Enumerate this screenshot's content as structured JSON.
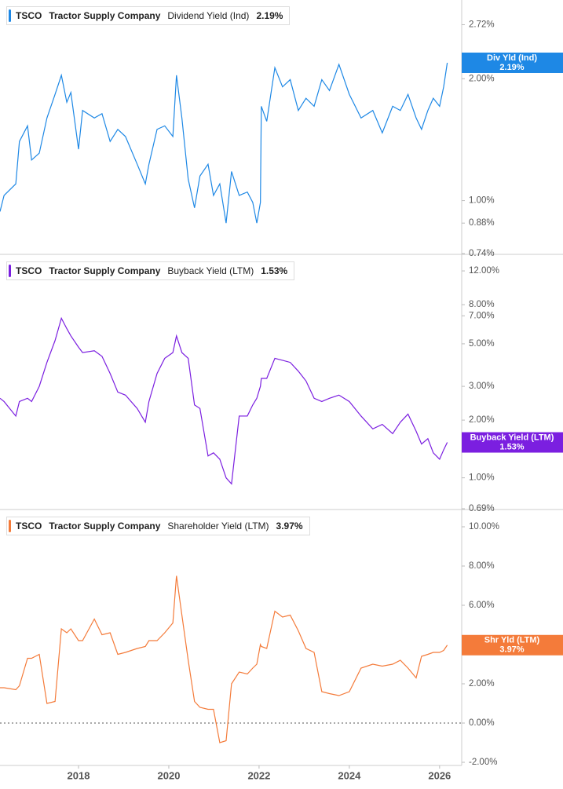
{
  "chart_data": [
    {
      "type": "line",
      "ticker": "TSCO",
      "company": "Tractor Supply Company",
      "log_scale": true,
      "xlim": [
        2016.26,
        2026.49
      ],
      "ylim": [
        0.74,
        3.13
      ],
      "yticks": [
        {
          "value": 0.74,
          "label": "0.74%"
        },
        {
          "value": 0.88,
          "label": "0.88%"
        },
        {
          "value": 1.0,
          "label": "1.00%"
        },
        {
          "value": 2.0,
          "label": "2.00%"
        },
        {
          "value": 2.72,
          "label": "2.72%"
        }
      ],
      "x": [
        2016.26,
        2016.35,
        2016.61,
        2016.69,
        2016.87,
        2016.96,
        2017.13,
        2017.3,
        2017.48,
        2017.62,
        2017.74,
        2017.83,
        2018.0,
        2018.09,
        2018.35,
        2018.52,
        2018.7,
        2018.87,
        2019.04,
        2019.3,
        2019.48,
        2019.56,
        2019.74,
        2019.91,
        2020.09,
        2020.17,
        2020.29,
        2020.43,
        2020.57,
        2020.69,
        2020.87,
        2020.99,
        2021.13,
        2021.27,
        2021.39,
        2021.56,
        2021.74,
        2021.86,
        2021.95,
        2022.03,
        2022.05,
        2022.17,
        2022.35,
        2022.52,
        2022.69,
        2022.87,
        2023.04,
        2023.22,
        2023.39,
        2023.56,
        2023.77,
        2024.0,
        2024.26,
        2024.52,
        2024.73,
        2024.96,
        2025.13,
        2025.3,
        2025.48,
        2025.6,
        2025.74,
        2025.86,
        2026.0,
        2026.09,
        2026.17
      ],
      "series": [
        {
          "name": "Dividend Yield (Ind)",
          "short_name": "Div Yld (Ind)",
          "color": "#1e88e5",
          "last_label": "2.19%",
          "values": [
            0.94,
            1.03,
            1.1,
            1.4,
            1.53,
            1.26,
            1.31,
            1.6,
            1.83,
            2.04,
            1.75,
            1.85,
            1.34,
            1.67,
            1.6,
            1.64,
            1.4,
            1.5,
            1.44,
            1.23,
            1.1,
            1.23,
            1.5,
            1.53,
            1.44,
            2.04,
            1.6,
            1.13,
            0.96,
            1.15,
            1.23,
            1.03,
            1.1,
            0.88,
            1.18,
            1.03,
            1.05,
            0.99,
            0.88,
            0.99,
            1.71,
            1.57,
            2.13,
            1.91,
            1.99,
            1.67,
            1.79,
            1.71,
            1.99,
            1.87,
            2.17,
            1.83,
            1.6,
            1.67,
            1.47,
            1.71,
            1.67,
            1.83,
            1.6,
            1.5,
            1.67,
            1.79,
            1.71,
            1.91,
            2.19
          ]
        }
      ]
    },
    {
      "type": "line",
      "ticker": "TSCO",
      "company": "Tractor Supply Company",
      "log_scale": true,
      "xlim": [
        2016.26,
        2026.49
      ],
      "ylim": [
        0.69,
        14.5
      ],
      "yticks": [
        {
          "value": 0.69,
          "label": "0.69%"
        },
        {
          "value": 1.0,
          "label": "1.00%"
        },
        {
          "value": 2.0,
          "label": "2.00%"
        },
        {
          "value": 3.0,
          "label": "3.00%"
        },
        {
          "value": 5.0,
          "label": "5.00%"
        },
        {
          "value": 7.0,
          "label": "7.00%"
        },
        {
          "value": 8.0,
          "label": "8.00%"
        },
        {
          "value": 12.0,
          "label": "12.00%"
        }
      ],
      "x": [
        2016.26,
        2016.35,
        2016.61,
        2016.69,
        2016.87,
        2016.96,
        2017.13,
        2017.3,
        2017.48,
        2017.62,
        2017.74,
        2017.83,
        2018.0,
        2018.09,
        2018.35,
        2018.52,
        2018.7,
        2018.87,
        2019.04,
        2019.3,
        2019.48,
        2019.56,
        2019.74,
        2019.91,
        2020.09,
        2020.17,
        2020.29,
        2020.43,
        2020.57,
        2020.69,
        2020.87,
        2020.99,
        2021.13,
        2021.27,
        2021.39,
        2021.56,
        2021.74,
        2021.86,
        2021.95,
        2022.03,
        2022.05,
        2022.17,
        2022.35,
        2022.52,
        2022.69,
        2022.87,
        2023.04,
        2023.22,
        2023.39,
        2023.56,
        2023.77,
        2024.0,
        2024.26,
        2024.52,
        2024.73,
        2024.96,
        2025.13,
        2025.3,
        2025.48,
        2025.6,
        2025.74,
        2025.86,
        2026.0,
        2026.09,
        2026.17
      ],
      "series": [
        {
          "name": "Buyback Yield (LTM)",
          "short_name": "Buyback Yield (LTM)",
          "color": "#7b1fe0",
          "last_label": "1.53%",
          "values": [
            2.6,
            2.5,
            2.1,
            2.5,
            2.6,
            2.5,
            3.0,
            4.0,
            5.2,
            6.8,
            6.0,
            5.5,
            4.8,
            4.5,
            4.6,
            4.3,
            3.5,
            2.8,
            2.7,
            2.3,
            1.95,
            2.5,
            3.5,
            4.2,
            4.5,
            5.5,
            4.5,
            4.2,
            2.4,
            2.3,
            1.3,
            1.35,
            1.25,
            1.0,
            0.93,
            2.1,
            2.1,
            2.4,
            2.6,
            3.0,
            3.3,
            3.3,
            4.2,
            4.1,
            4.0,
            3.6,
            3.2,
            2.6,
            2.5,
            2.6,
            2.7,
            2.5,
            2.1,
            1.8,
            1.9,
            1.7,
            1.95,
            2.15,
            1.75,
            1.5,
            1.6,
            1.35,
            1.25,
            1.4,
            1.53
          ]
        }
      ]
    },
    {
      "type": "line",
      "ticker": "TSCO",
      "company": "Tractor Supply Company",
      "log_scale": false,
      "zero_line": true,
      "xlim": [
        2016.26,
        2026.49
      ],
      "ylim": [
        -2.16,
        10.84
      ],
      "xticks": [
        2018,
        2020,
        2022,
        2024,
        2026
      ],
      "yticks": [
        {
          "value": -2,
          "label": "-2.00%"
        },
        {
          "value": 0,
          "label": "0.00%"
        },
        {
          "value": 2,
          "label": "2.00%"
        },
        {
          "value": 4,
          "label": "4.00%"
        },
        {
          "value": 6,
          "label": "6.00%"
        },
        {
          "value": 8,
          "label": "8.00%"
        },
        {
          "value": 10,
          "label": "10.00%"
        }
      ],
      "x": [
        2016.26,
        2016.35,
        2016.61,
        2016.69,
        2016.87,
        2016.96,
        2017.13,
        2017.3,
        2017.48,
        2017.62,
        2017.74,
        2017.83,
        2018.0,
        2018.09,
        2018.35,
        2018.52,
        2018.7,
        2018.87,
        2019.04,
        2019.3,
        2019.48,
        2019.56,
        2019.74,
        2019.91,
        2020.09,
        2020.17,
        2020.29,
        2020.43,
        2020.57,
        2020.69,
        2020.87,
        2020.99,
        2021.13,
        2021.27,
        2021.39,
        2021.56,
        2021.74,
        2021.86,
        2021.95,
        2022.03,
        2022.05,
        2022.17,
        2022.35,
        2022.52,
        2022.69,
        2022.87,
        2023.04,
        2023.22,
        2023.39,
        2023.56,
        2023.77,
        2024.0,
        2024.26,
        2024.52,
        2024.73,
        2024.96,
        2025.13,
        2025.3,
        2025.48,
        2025.6,
        2025.74,
        2025.86,
        2026.0,
        2026.09,
        2026.17
      ],
      "series": [
        {
          "name": "Shareholder Yield (LTM)",
          "short_name": "Shr Yld (LTM)",
          "color": "#f47b3a",
          "last_label": "3.97%",
          "values": [
            1.8,
            1.8,
            1.7,
            1.9,
            3.3,
            3.3,
            3.5,
            1.0,
            1.1,
            4.8,
            4.6,
            4.8,
            4.2,
            4.2,
            5.3,
            4.5,
            4.6,
            3.5,
            3.6,
            3.8,
            3.9,
            4.2,
            4.2,
            4.6,
            5.1,
            7.5,
            5.5,
            3.2,
            1.1,
            0.8,
            0.7,
            0.7,
            -1.0,
            -0.9,
            2.0,
            2.6,
            2.5,
            2.8,
            3.0,
            4.0,
            3.9,
            3.8,
            5.7,
            5.4,
            5.5,
            4.7,
            3.8,
            3.6,
            1.6,
            1.5,
            1.4,
            1.6,
            2.8,
            3.0,
            2.9,
            3.0,
            3.2,
            2.8,
            2.3,
            3.4,
            3.5,
            3.6,
            3.6,
            3.7,
            3.97
          ]
        }
      ]
    }
  ]
}
